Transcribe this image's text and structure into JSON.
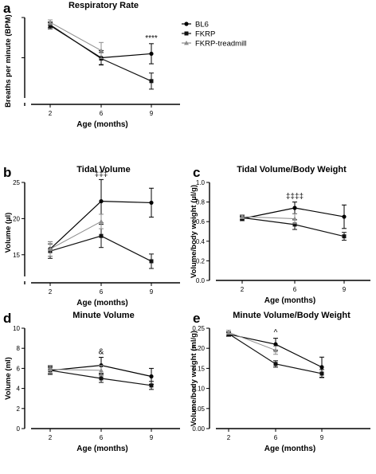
{
  "legend": {
    "entries": [
      "BL6",
      "FKRP",
      "FKRP-treadmill"
    ],
    "placement": "top-right"
  },
  "colors": {
    "BL6": "#000000",
    "FKRP": "#111111",
    "FKRP-treadmill": "#8c8c8c"
  },
  "chart_data": [
    {
      "panel": "a",
      "type": "line",
      "title": "Respiratory Rate",
      "xlabel": "Age (months)",
      "ylabel": "Breaths per minute (BPM)",
      "categories": [
        "2",
        "6",
        "9"
      ],
      "yticks": [],
      "axis_break": true,
      "series": [
        {
          "name": "BL6",
          "values": [
            380,
            300,
            310
          ],
          "errors": [
            8,
            18,
            25
          ]
        },
        {
          "name": "FKRP",
          "values": [
            382,
            298,
            242
          ],
          "errors": [
            7,
            15,
            20
          ]
        },
        {
          "name": "FKRP-treadmill",
          "values": [
            388,
            318,
            null
          ],
          "errors": [
            6,
            20,
            null
          ]
        }
      ],
      "annotations": [
        {
          "text": "****",
          "category": "9"
        }
      ]
    },
    {
      "panel": "b",
      "type": "line",
      "title": "Tidal Volume",
      "xlabel": "Age (months)",
      "ylabel": "Volume (µl)",
      "categories": [
        "2",
        "6",
        "9"
      ],
      "yticks": [
        "15",
        "20",
        "25"
      ],
      "axis_break": true,
      "series": [
        {
          "name": "BL6",
          "values": [
            15.8,
            22.4,
            22.2
          ],
          "errors": [
            1,
            3,
            2
          ]
        },
        {
          "name": "FKRP",
          "values": [
            15.5,
            17.6,
            14.1
          ],
          "errors": [
            1,
            1.6,
            1
          ]
        },
        {
          "name": "FKRP-treadmill",
          "values": [
            15.8,
            19.6,
            null
          ],
          "errors": [
            1,
            1,
            null
          ]
        }
      ],
      "annotations": [
        {
          "text": "‡‡‡",
          "category": "6"
        }
      ]
    },
    {
      "panel": "c",
      "type": "line",
      "title": "Tidal Volume/Body Weight",
      "xlabel": "Age (months)",
      "ylabel": "Volume/body weight (µl/g)",
      "categories": [
        "2",
        "6",
        "9"
      ],
      "yticks": [
        "0.0",
        "0.2",
        "0.4",
        "0.6",
        "0.8",
        "1.0"
      ],
      "ylim": [
        0,
        1
      ],
      "series": [
        {
          "name": "BL6",
          "values": [
            0.63,
            0.74,
            0.65
          ],
          "errors": [
            0.02,
            0.06,
            0.12
          ]
        },
        {
          "name": "FKRP",
          "values": [
            0.64,
            0.57,
            0.45
          ],
          "errors": [
            0.02,
            0.05,
            0.04
          ]
        },
        {
          "name": "FKRP-treadmill",
          "values": [
            0.65,
            0.63,
            null
          ],
          "errors": [
            0.02,
            0.05,
            null
          ]
        }
      ],
      "annotations": [
        {
          "text": "‡‡‡‡",
          "category": "6"
        }
      ]
    },
    {
      "panel": "d",
      "type": "line",
      "title": "Minute Volume",
      "xlabel": "Age (months)",
      "ylabel": "Volume (ml)",
      "categories": [
        "2",
        "6",
        "9"
      ],
      "yticks": [
        "0",
        "2",
        "4",
        "6",
        "8",
        "10"
      ],
      "ylim": [
        0,
        10
      ],
      "series": [
        {
          "name": "BL6",
          "values": [
            5.8,
            6.3,
            5.2
          ],
          "errors": [
            0.4,
            0.8,
            0.8
          ]
        },
        {
          "name": "FKRP",
          "values": [
            5.8,
            5.0,
            4.3
          ],
          "errors": [
            0.3,
            0.4,
            0.4
          ]
        },
        {
          "name": "FKRP-treadmill",
          "values": [
            5.9,
            5.8,
            null
          ],
          "errors": [
            0.4,
            0.5,
            null
          ]
        }
      ],
      "annotations": [
        {
          "text": "&",
          "category": "6"
        }
      ]
    },
    {
      "panel": "e",
      "type": "line",
      "title": "Minute Volume/Body Weight",
      "xlabel": "Age (months)",
      "ylabel": "Volume/body weight (ml/g)",
      "categories": [
        "2",
        "6",
        "9"
      ],
      "yticks": [
        "0.00",
        "0.05",
        "0.10",
        "0.15",
        "0.20",
        "0.25"
      ],
      "ylim": [
        0,
        0.25
      ],
      "series": [
        {
          "name": "BL6",
          "values": [
            0.235,
            0.21,
            0.153
          ],
          "errors": [
            0.005,
            0.015,
            0.025
          ]
        },
        {
          "name": "FKRP",
          "values": [
            0.236,
            0.161,
            0.137
          ],
          "errors": [
            0.005,
            0.008,
            0.01
          ]
        },
        {
          "name": "FKRP-treadmill",
          "values": [
            0.24,
            0.195,
            null
          ],
          "errors": [
            0.005,
            0.01,
            null
          ]
        }
      ],
      "annotations": [
        {
          "text": "^",
          "category": "6"
        }
      ]
    }
  ]
}
